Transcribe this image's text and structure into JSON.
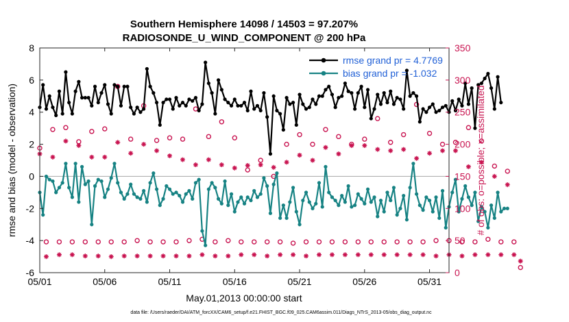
{
  "chart_data": {
    "type": "line",
    "title_line1": "Southern Hemisphere 14098 / 14503 = 97.207%",
    "title_line2": "RADIOSONDE_U_WIND_COMPONENT @ 200 hPa",
    "xlabel": "May.01,2013 00:00:00 start",
    "ylabel_left": "rmse and bias (model - observation)",
    "ylabel_right": "# of obs: o=possible; ×=assimilated",
    "footer": "data file: /Users/raeder/DAI/ATM_forcXX/CAM6_setup/f.e21.FHIST_BGC.f09_025.CAM6assim.011/Diags_NTrS_2013-05/obs_diag_output.nc",
    "xlim": [
      1,
      32.5
    ],
    "ylim_left": [
      -6,
      8
    ],
    "ylim_right": [
      0,
      350
    ],
    "x_ticks": [
      1,
      6,
      11,
      16,
      21,
      26,
      31
    ],
    "x_tick_labels": [
      "05/01",
      "05/06",
      "05/11",
      "05/16",
      "05/21",
      "05/26",
      "05/31"
    ],
    "y_ticks_left": [
      -6,
      -4,
      -2,
      0,
      2,
      4,
      6,
      8
    ],
    "y_tick_labels_left": [
      "-6",
      "-4",
      "-2",
      "0",
      "2",
      "4",
      "6",
      "8"
    ],
    "y_ticks_right": [
      0,
      50,
      100,
      150,
      200,
      250,
      300,
      350
    ],
    "y_tick_labels_right": [
      "0",
      "50",
      "100",
      "150",
      "200",
      "250",
      "300",
      "350"
    ],
    "zero_line": 0,
    "legend_position": "top-right",
    "colors": {
      "rmse": "#000000",
      "bias": "#168283",
      "obs": "#c8124f",
      "zero": "#b0b0b0"
    },
    "series": [
      {
        "name": "rmse grand pr = 4.7769",
        "marker": "circle",
        "x_start": 1.0,
        "x_step": 0.25,
        "values": [
          4.3,
          5.7,
          4.2,
          5.0,
          4.3,
          3.8,
          5.3,
          3.9,
          6.5,
          4.6,
          3.9,
          5.3,
          5.9,
          4.9,
          4.9,
          4.9,
          4.4,
          5.6,
          4.6,
          5.2,
          5.7,
          4.5,
          3.9,
          5.7,
          5.6,
          4.4,
          5.6,
          5.6,
          4.3,
          3.9,
          4.3,
          4.0,
          4.2,
          6.7,
          5.6,
          5.2,
          4.6,
          3.2,
          4.6,
          4.8,
          4.8,
          4.2,
          4.9,
          4.4,
          4.6,
          4.4,
          4.8,
          4.7,
          4.9,
          4.1,
          4.5,
          7.1,
          5.8,
          5.2,
          3.9,
          6.0,
          5.4,
          4.8,
          4.6,
          4.4,
          4.8,
          4.4,
          4.4,
          4.6,
          4.1,
          5.3,
          4.2,
          4.4,
          4.1,
          5.2,
          3.7,
          1.4,
          5.0,
          4.1,
          3.9,
          2.9,
          4.9,
          4.5,
          4.6,
          3.2,
          5.1,
          4.5,
          4.2,
          4.3,
          4.8,
          4.5,
          5.0,
          5.0,
          5.4,
          5.6,
          5.1,
          4.3,
          4.9,
          5.0,
          5.8,
          5.3,
          5.2,
          4.2,
          5.2,
          5.6,
          4.3,
          5.4,
          3.6,
          4.2,
          5.1,
          4.5,
          5.2,
          4.6,
          5.3,
          4.5,
          4.9,
          4.8,
          4.2,
          6.6,
          5.0,
          5.2,
          5.0,
          3.4,
          4.2,
          4.0,
          4.3,
          4.5,
          4.0,
          4.1,
          4.3,
          4.4,
          4.0,
          4.7,
          4.1,
          4.8,
          4.4,
          5.8,
          4.5,
          5.5,
          3.0,
          5.7,
          5.8,
          6.1,
          6.4,
          5.5,
          4.2,
          6.2,
          4.6
        ]
      },
      {
        "name": "bias grand pr = -1.032",
        "marker": "circle",
        "x_start": 1.0,
        "x_step": 0.25,
        "values": [
          -1.0,
          -2.4,
          0.0,
          -0.2,
          -0.3,
          -1.0,
          -0.7,
          -0.4,
          0.8,
          -0.7,
          -1.3,
          0.8,
          -1.6,
          0.6,
          -0.5,
          -0.3,
          -3.0,
          -0.6,
          -0.2,
          -0.3,
          -1.3,
          -0.8,
          -0.1,
          0.8,
          -0.4,
          -1.0,
          -1.4,
          -1.1,
          -0.5,
          -1.1,
          -1.3,
          -1.4,
          -0.9,
          -1.6,
          -0.4,
          0.2,
          -0.8,
          -1.8,
          -1.4,
          -0.6,
          -0.8,
          -1.1,
          -1.0,
          -1.2,
          -1.6,
          -1.1,
          -0.9,
          -1.4,
          -0.4,
          -0.2,
          -3.4,
          -4.3,
          -0.8,
          -0.4,
          -0.7,
          -1.4,
          -1.7,
          -0.3,
          -1.8,
          -1.1,
          -2.2,
          -1.6,
          -1.3,
          -1.7,
          -1.3,
          -1.5,
          -0.9,
          -1.3,
          -1.1,
          -0.1,
          -0.6,
          -2.3,
          -0.5,
          0.2,
          -2.6,
          -1.8,
          -2.6,
          -1.6,
          -0.7,
          -2.2,
          -3.0,
          -1.5,
          -1.0,
          -1.6,
          -2.0,
          -1.7,
          -0.4,
          -1.9,
          0.6,
          -1.0,
          -1.3,
          -1.5,
          -1.8,
          -1.2,
          -1.6,
          -0.6,
          -1.9,
          -1.8,
          -1.1,
          -1.4,
          -1.7,
          -0.8,
          -1.6,
          -1.3,
          -2.5,
          -1.5,
          -2.2,
          -1.0,
          -1.5,
          -0.7,
          -2.4,
          -2.0,
          -1.2,
          -2.7,
          -0.7,
          0.8,
          -1.1,
          -1.8,
          -2.1,
          -1.3,
          -1.5,
          -2.2,
          -1.3,
          -2.6,
          -0.9,
          -3.2,
          -1.9,
          -1.0,
          -0.2,
          -2.2,
          -1.4,
          -0.6,
          -1.3,
          -1.8,
          -1.0,
          -2.8,
          -1.9,
          -2.2,
          -3.2,
          -1.8,
          -2.6,
          -1.0,
          -2.2,
          -2.0,
          -2.0
        ]
      }
    ],
    "obs_possible": {
      "name": "possible",
      "marker": "o",
      "x_start": 1.0,
      "x_step": 0.5,
      "values": [
        194,
        48,
        223,
        48,
        226,
        48,
        204,
        48,
        220,
        48,
        224,
        48,
        290,
        48,
        208,
        50,
        260,
        48,
        206,
        48,
        210,
        48,
        208,
        50,
        255,
        52,
        212,
        48,
        235,
        50,
        210,
        48,
        160,
        48,
        175,
        48,
        150,
        48,
        200,
        46,
        215,
        48,
        200,
        48,
        223,
        48,
        212,
        48,
        200,
        48,
        208,
        48,
        240,
        48,
        203,
        48,
        215,
        48,
        262,
        48,
        217,
        50,
        200,
        50,
        203,
        48,
        226,
        48,
        205,
        52,
        166,
        48,
        158,
        48,
        8
      ]
    },
    "obs_assimilated": {
      "name": "assimilated",
      "marker": "x",
      "x_start": 1.0,
      "x_step": 0.5,
      "values": [
        185,
        25,
        180,
        28,
        205,
        28,
        198,
        26,
        180,
        26,
        180,
        25,
        203,
        26,
        186,
        26,
        200,
        26,
        190,
        26,
        182,
        26,
        176,
        26,
        168,
        28,
        176,
        26,
        168,
        26,
        163,
        28,
        167,
        28,
        168,
        26,
        164,
        28,
        172,
        28,
        183,
        26,
        175,
        28,
        195,
        28,
        185,
        28,
        198,
        28,
        198,
        28,
        192,
        28,
        190,
        28,
        192,
        28,
        178,
        28,
        186,
        26,
        190,
        28,
        190,
        26,
        165,
        28,
        172,
        28,
        150,
        28,
        137,
        28,
        18
      ]
    }
  }
}
